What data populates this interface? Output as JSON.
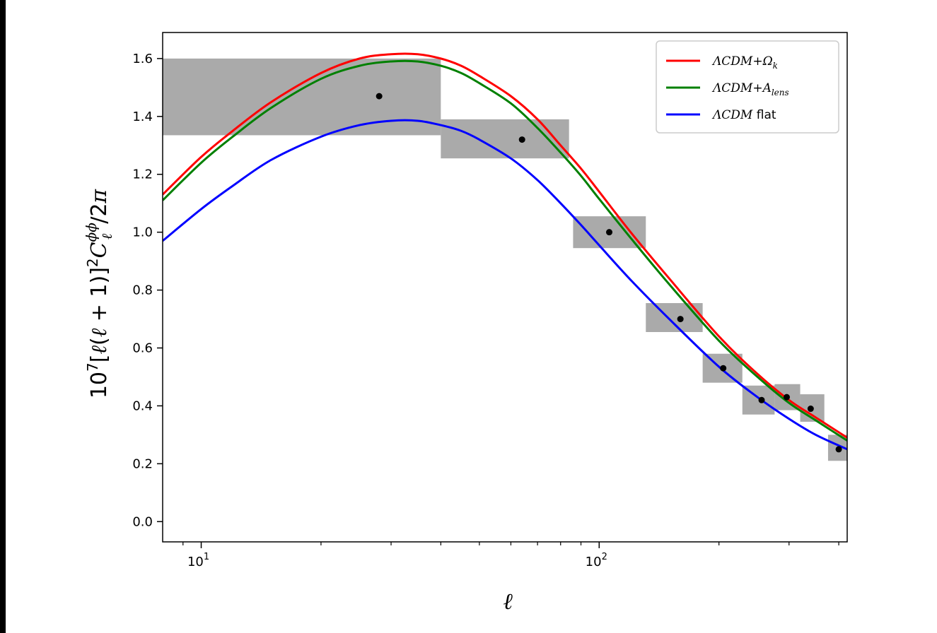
{
  "chart_data": {
    "type": "line",
    "xscale": "log",
    "xlim": [
      8,
      420
    ],
    "ylim": [
      -0.07,
      1.69
    ],
    "xlabel": "ℓ",
    "ylabel": "10⁷[ℓ(ℓ + 1)]²C_ℓ^{ϕϕ}/2π",
    "y_ticks": [
      "0.0",
      "0.2",
      "0.4",
      "0.6",
      "0.8",
      "1.0",
      "1.2",
      "1.4",
      "1.6"
    ],
    "y_tick_values": [
      0.0,
      0.2,
      0.4,
      0.6,
      0.8,
      1.0,
      1.2,
      1.4,
      1.6
    ],
    "x_major_ticks": [
      {
        "value": 10,
        "base": "10",
        "exp": "1"
      },
      {
        "value": 100,
        "base": "10",
        "exp": "2"
      }
    ],
    "x_minor_ticks": [
      9,
      20,
      30,
      40,
      50,
      60,
      70,
      80,
      90,
      200,
      300,
      400
    ],
    "legend_position": "top-right",
    "series": [
      {
        "name": "ΛCDM+Ω_k",
        "legend_main": "ΛCDM+Ω",
        "legend_sub": "k",
        "color": "#ff0000",
        "x": [
          8,
          10,
          12,
          15,
          20,
          25,
          30,
          35,
          40,
          45,
          50,
          60,
          70,
          80,
          90,
          100,
          120,
          150,
          200,
          250,
          300,
          350,
          420
        ],
        "y": [
          1.13,
          1.26,
          1.35,
          1.45,
          1.55,
          1.6,
          1.615,
          1.615,
          1.6,
          1.575,
          1.54,
          1.47,
          1.39,
          1.3,
          1.22,
          1.14,
          1.0,
          0.84,
          0.64,
          0.51,
          0.42,
          0.36,
          0.29
        ]
      },
      {
        "name": "ΛCDM+A_lens",
        "legend_main": "ΛCDM+A",
        "legend_sub": "lens",
        "color": "#008000",
        "x": [
          8,
          10,
          12,
          15,
          20,
          25,
          30,
          35,
          40,
          45,
          50,
          60,
          70,
          80,
          90,
          100,
          120,
          150,
          200,
          250,
          300,
          350,
          420
        ],
        "y": [
          1.11,
          1.24,
          1.33,
          1.43,
          1.53,
          1.575,
          1.59,
          1.59,
          1.575,
          1.55,
          1.515,
          1.445,
          1.36,
          1.275,
          1.195,
          1.115,
          0.98,
          0.82,
          0.625,
          0.5,
          0.41,
          0.35,
          0.28
        ]
      },
      {
        "name": "ΛCDM flat",
        "legend_main": "ΛCDM",
        "legend_sub": "",
        "legend_tail": " flat",
        "color": "#0000ff",
        "x": [
          8,
          10,
          12,
          15,
          20,
          25,
          30,
          35,
          40,
          45,
          50,
          60,
          70,
          80,
          90,
          100,
          120,
          150,
          200,
          250,
          300,
          350,
          420
        ],
        "y": [
          0.97,
          1.08,
          1.16,
          1.25,
          1.33,
          1.37,
          1.385,
          1.385,
          1.37,
          1.35,
          1.32,
          1.255,
          1.18,
          1.1,
          1.025,
          0.955,
          0.835,
          0.7,
          0.535,
          0.43,
          0.355,
          0.3,
          0.25
        ]
      }
    ],
    "data_points": {
      "color": "#000000",
      "x": [
        28,
        64,
        106,
        160,
        205,
        256,
        296,
        340,
        400
      ],
      "y": [
        1.47,
        1.32,
        1.0,
        0.7,
        0.53,
        0.42,
        0.43,
        0.39,
        0.25
      ]
    },
    "error_boxes": {
      "color": "#aaaaaa",
      "boxes": [
        {
          "x0": 8,
          "x1": 40,
          "y0": 1.335,
          "y1": 1.6
        },
        {
          "x0": 40,
          "x1": 84,
          "y0": 1.255,
          "y1": 1.39
        },
        {
          "x0": 86,
          "x1": 131,
          "y0": 0.945,
          "y1": 1.055
        },
        {
          "x0": 131,
          "x1": 182,
          "y0": 0.655,
          "y1": 0.755
        },
        {
          "x0": 182,
          "x1": 229,
          "y0": 0.48,
          "y1": 0.58
        },
        {
          "x0": 229,
          "x1": 276,
          "y0": 0.37,
          "y1": 0.47
        },
        {
          "x0": 276,
          "x1": 320,
          "y0": 0.385,
          "y1": 0.475
        },
        {
          "x0": 320,
          "x1": 368,
          "y0": 0.345,
          "y1": 0.44
        },
        {
          "x0": 376,
          "x1": 420,
          "y0": 0.21,
          "y1": 0.3
        }
      ]
    }
  }
}
